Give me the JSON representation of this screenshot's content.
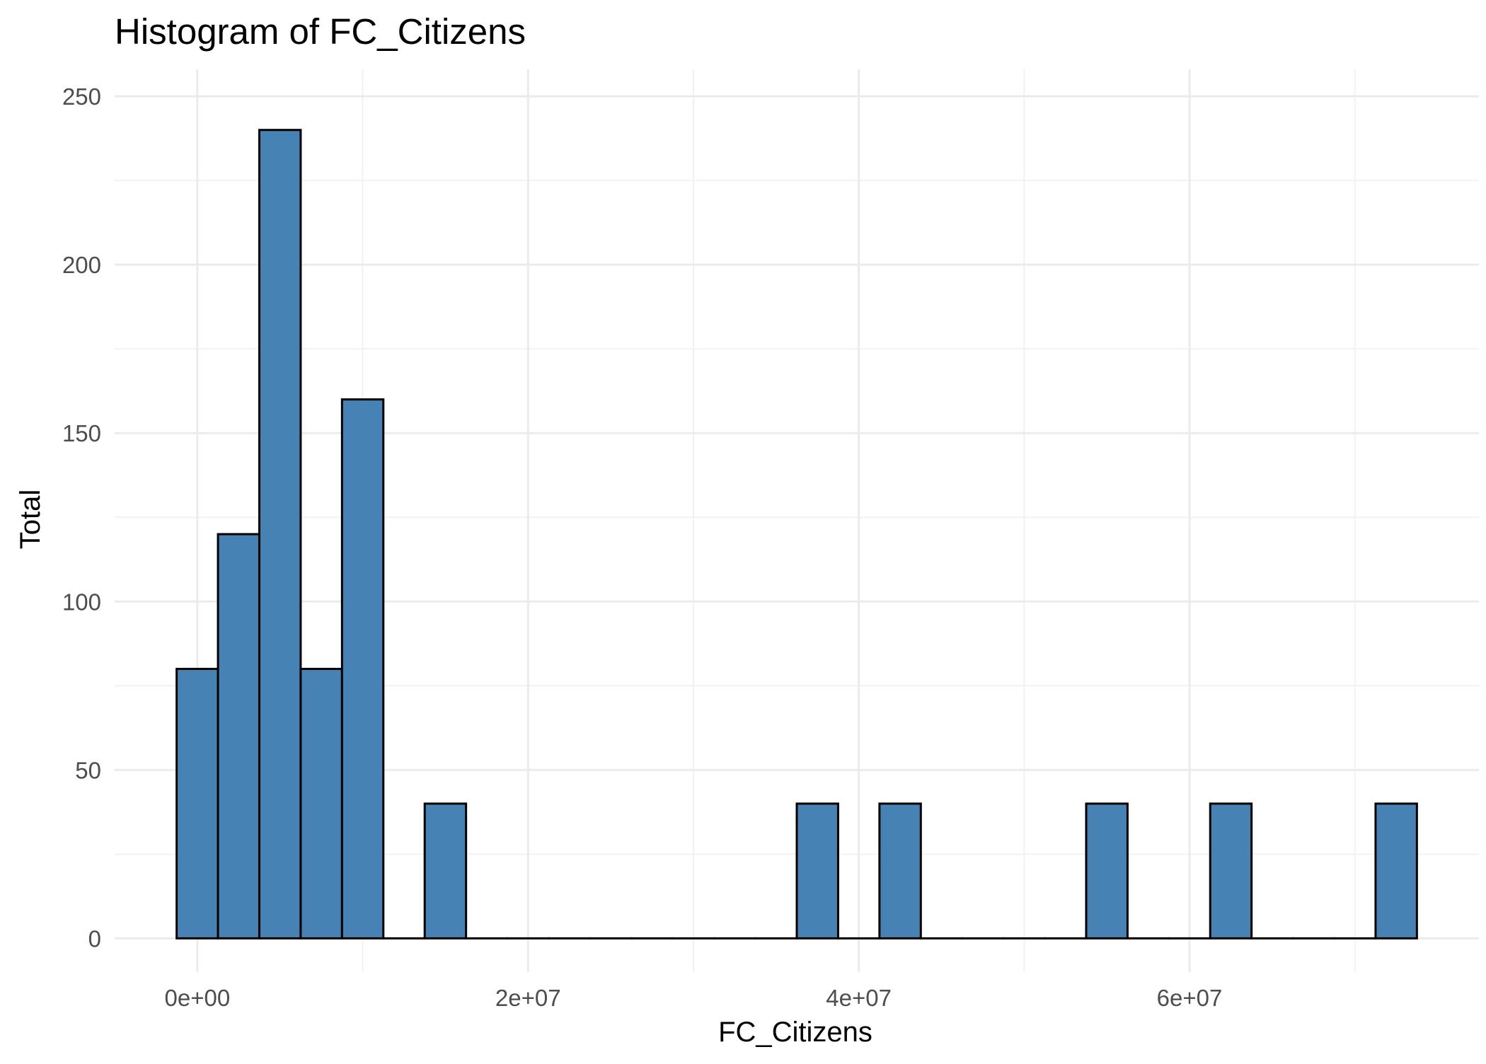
{
  "chart_data": {
    "type": "bar",
    "subtype": "histogram",
    "title": "Histogram of  FC_Citizens",
    "xlabel": "FC_Citizens",
    "ylabel": "Total",
    "bin_width": 2500000,
    "bins": [
      {
        "x": 0,
        "count": 80
      },
      {
        "x": 2500000,
        "count": 120
      },
      {
        "x": 5000000,
        "count": 240
      },
      {
        "x": 7500000,
        "count": 80
      },
      {
        "x": 10000000,
        "count": 160
      },
      {
        "x": 12500000,
        "count": 0
      },
      {
        "x": 15000000,
        "count": 40
      },
      {
        "x": 17500000,
        "count": 0
      },
      {
        "x": 20000000,
        "count": 0
      },
      {
        "x": 22500000,
        "count": 0
      },
      {
        "x": 25000000,
        "count": 0
      },
      {
        "x": 27500000,
        "count": 0
      },
      {
        "x": 30000000,
        "count": 0
      },
      {
        "x": 32500000,
        "count": 0
      },
      {
        "x": 35000000,
        "count": 0
      },
      {
        "x": 37500000,
        "count": 40
      },
      {
        "x": 40000000,
        "count": 0
      },
      {
        "x": 42500000,
        "count": 40
      },
      {
        "x": 45000000,
        "count": 0
      },
      {
        "x": 47500000,
        "count": 0
      },
      {
        "x": 50000000,
        "count": 0
      },
      {
        "x": 52500000,
        "count": 0
      },
      {
        "x": 55000000,
        "count": 40
      },
      {
        "x": 57500000,
        "count": 0
      },
      {
        "x": 60000000,
        "count": 0
      },
      {
        "x": 62500000,
        "count": 40
      },
      {
        "x": 65000000,
        "count": 0
      },
      {
        "x": 67500000,
        "count": 0
      },
      {
        "x": 70000000,
        "count": 0
      },
      {
        "x": 72500000,
        "count": 40
      }
    ],
    "xlim": [
      -5000000,
      77500000
    ],
    "ylim": [
      -10,
      258
    ],
    "x_ticks": [
      {
        "value": 0,
        "label": "0e+00"
      },
      {
        "value": 20000000,
        "label": "2e+07"
      },
      {
        "value": 40000000,
        "label": "4e+07"
      },
      {
        "value": 60000000,
        "label": "6e+07"
      }
    ],
    "x_minor_ticks": [
      10000000,
      30000000,
      50000000,
      70000000
    ],
    "y_ticks": [
      {
        "value": 0,
        "label": "0"
      },
      {
        "value": 50,
        "label": "50"
      },
      {
        "value": 100,
        "label": "100"
      },
      {
        "value": 150,
        "label": "150"
      },
      {
        "value": 200,
        "label": "200"
      },
      {
        "value": 250,
        "label": "250"
      }
    ],
    "y_minor_ticks": [
      25,
      75,
      125,
      175,
      225
    ],
    "grid": true,
    "colors": {
      "fill": "#4682b4",
      "outline": "#000000",
      "grid_major": "#ebebeb",
      "grid_minor": "#f2f2f2"
    }
  }
}
